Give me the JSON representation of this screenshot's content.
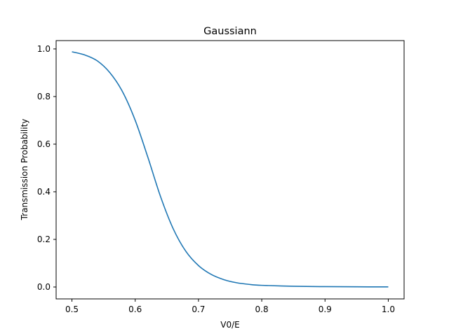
{
  "chart_data": {
    "type": "line",
    "title": "Gaussiann",
    "xlabel": "V0/E",
    "ylabel": "Transmission Probability",
    "xlim": [
      0.475,
      1.025
    ],
    "ylim": [
      -0.05,
      1.035
    ],
    "xticks": [
      0.5,
      0.6,
      0.7,
      0.8,
      0.9,
      1.0
    ],
    "xtick_labels": [
      "0.5",
      "0.6",
      "0.7",
      "0.8",
      "0.9",
      "1.0"
    ],
    "yticks": [
      0.0,
      0.2,
      0.4,
      0.6,
      0.8,
      1.0
    ],
    "ytick_labels": [
      "0.0",
      "0.2",
      "0.4",
      "0.6",
      "0.8",
      "1.0"
    ],
    "grid": false,
    "legend": "none",
    "series": [
      {
        "color": "#1f77b4",
        "x": [
          0.5,
          0.52,
          0.54,
          0.56,
          0.58,
          0.6,
          0.62,
          0.64,
          0.66,
          0.68,
          0.7,
          0.72,
          0.74,
          0.76,
          0.78,
          0.8,
          0.85,
          0.9,
          0.95,
          1.0
        ],
        "y": [
          0.988,
          0.975,
          0.95,
          0.9,
          0.82,
          0.7,
          0.545,
          0.38,
          0.245,
          0.15,
          0.09,
          0.053,
          0.031,
          0.018,
          0.011,
          0.007,
          0.003,
          0.0015,
          0.0008,
          0.0005
        ]
      }
    ]
  }
}
